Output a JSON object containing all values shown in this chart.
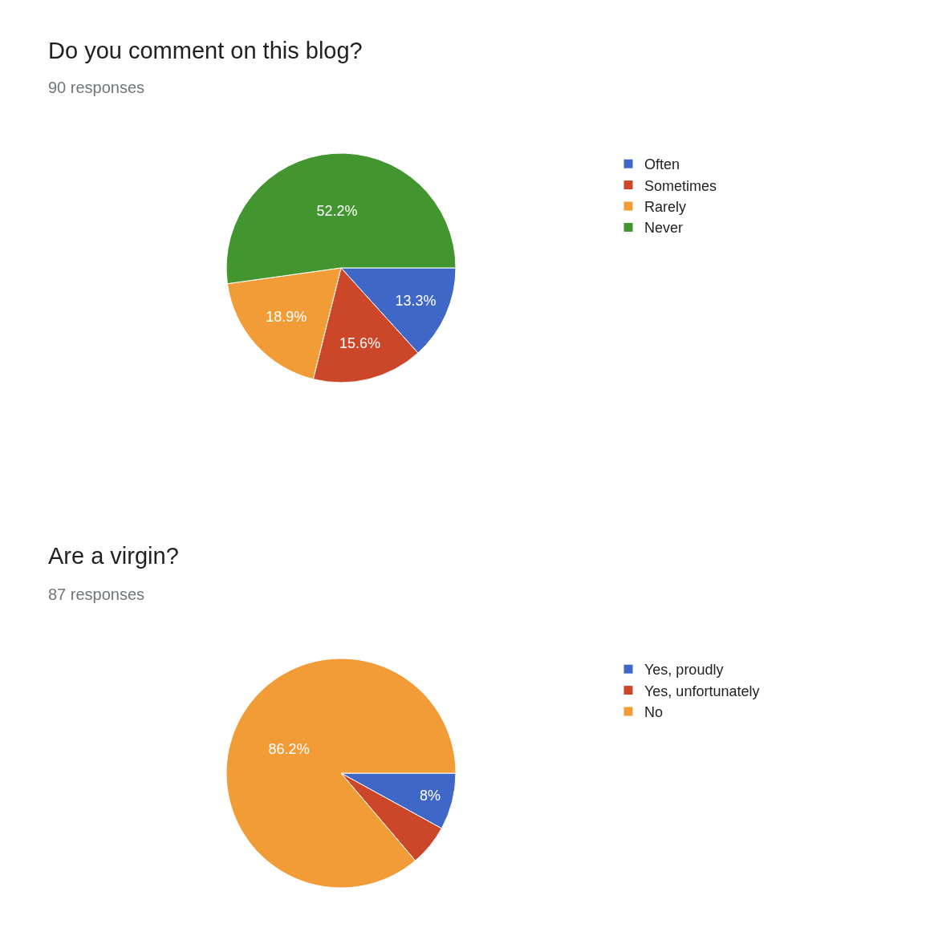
{
  "chart_data": [
    {
      "type": "pie",
      "title": "Do you comment on this blog?",
      "subtitle": "90 responses",
      "categories": [
        "Often",
        "Sometimes",
        "Rarely",
        "Never"
      ],
      "values": [
        13.3,
        15.6,
        18.9,
        52.2
      ],
      "colors": [
        "#3f67c8",
        "#cc4729",
        "#f29c37",
        "#43952f"
      ],
      "value_labels": [
        "13.3%",
        "15.6%",
        "18.9%",
        "52.2%"
      ],
      "legend": "right"
    },
    {
      "type": "pie",
      "title": "Are a virgin?",
      "subtitle": "87 responses",
      "categories": [
        "Yes, proudly",
        "Yes, unfortunately",
        "No"
      ],
      "values": [
        8,
        5.8,
        86.2
      ],
      "colors": [
        "#3f67c8",
        "#cc4729",
        "#f29c37"
      ],
      "value_labels": [
        "8%",
        null,
        "86.2%"
      ],
      "legend": "right"
    }
  ]
}
